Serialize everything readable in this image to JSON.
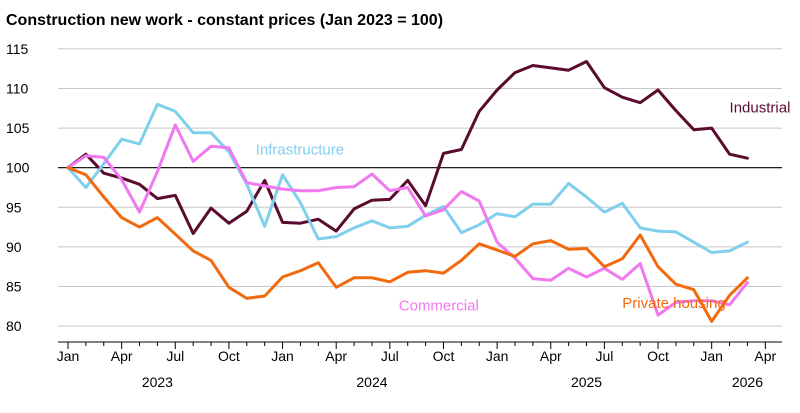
{
  "chart_data": {
    "type": "line",
    "title": "Construction new work - constant prices (Jan 2023 = 100)",
    "xlabel": "",
    "ylabel": "",
    "ylim": [
      78,
      117
    ],
    "yticks": [
      80,
      85,
      90,
      95,
      100,
      105,
      110,
      115
    ],
    "xtick_labels": [
      "Jan",
      "Apr",
      "Jul",
      "Oct",
      "Jan",
      "Apr",
      "Jul",
      "Oct",
      "Jan",
      "Apr",
      "Jul",
      "Oct",
      "Jan",
      "Apr"
    ],
    "year_labels": [
      {
        "label": "2023",
        "month_index": 5
      },
      {
        "label": "2024",
        "month_index": 17
      },
      {
        "label": "2025",
        "month_index": 29
      },
      {
        "label": "2026",
        "month_index": 38
      }
    ],
    "reference_line": 100,
    "grid": "horizontal",
    "x_start": "Jan 2023",
    "series": [
      {
        "name": "Industrial",
        "color": "#5a0c2e",
        "label_month_index": 37,
        "label_value": 107.6,
        "values": [
          100,
          101.7,
          99.3,
          98.7,
          97.9,
          96.1,
          96.5,
          91.7,
          94.9,
          93.0,
          94.5,
          98.4,
          93.1,
          93.0,
          93.5,
          92.0,
          94.8,
          95.9,
          96.0,
          98.4,
          95.2,
          101.8,
          102.3,
          107.1,
          109.8,
          112.0,
          112.9,
          112.6,
          112.3,
          113.4,
          110.1,
          108.9,
          108.2,
          109.8,
          107.2,
          104.8,
          105.0,
          101.7,
          101.2
        ]
      },
      {
        "name": "Infrastructure",
        "color": "#80cfed",
        "label_month_index": 10.5,
        "label_value": 102.3,
        "values": [
          100,
          97.5,
          100.5,
          103.6,
          103.0,
          108.0,
          107.1,
          104.4,
          104.4,
          102.0,
          97.9,
          92.6,
          99.1,
          95.6,
          91.0,
          91.3,
          92.4,
          93.3,
          92.4,
          92.6,
          94.0,
          95.1,
          91.8,
          92.8,
          94.2,
          93.8,
          95.4,
          95.4,
          98.0,
          96.3,
          94.4,
          95.5,
          92.4,
          92.0,
          91.9,
          90.6,
          89.3,
          89.5,
          90.6
        ]
      },
      {
        "name": "Commercial",
        "color": "#f079f0",
        "label_month_index": 18.5,
        "label_value": 82.6,
        "values": [
          100,
          101.5,
          101.3,
          98.5,
          94.4,
          99.5,
          105.4,
          100.8,
          102.7,
          102.5,
          98.1,
          97.7,
          97.3,
          97.1,
          97.1,
          97.5,
          97.6,
          99.2,
          97.1,
          97.5,
          93.9,
          94.7,
          97.0,
          95.8,
          90.6,
          88.6,
          86.0,
          85.8,
          87.3,
          86.2,
          87.3,
          85.9,
          87.9,
          81.4,
          83.0,
          83.2,
          83.2,
          82.7,
          85.5
        ]
      },
      {
        "name": "Private housing",
        "color": "#f26a0f",
        "label_month_index": 31,
        "label_value": 82.9,
        "values": [
          100,
          99.1,
          96.3,
          93.7,
          92.5,
          93.7,
          91.6,
          89.5,
          88.3,
          84.9,
          83.5,
          83.8,
          86.2,
          87.0,
          88.0,
          84.9,
          86.1,
          86.1,
          85.6,
          86.8,
          87.0,
          86.7,
          88.3,
          90.4,
          89.6,
          88.8,
          90.4,
          90.8,
          89.7,
          89.8,
          87.5,
          88.5,
          91.5,
          87.5,
          85.3,
          84.6,
          80.6,
          83.9,
          86.1
        ]
      }
    ]
  }
}
